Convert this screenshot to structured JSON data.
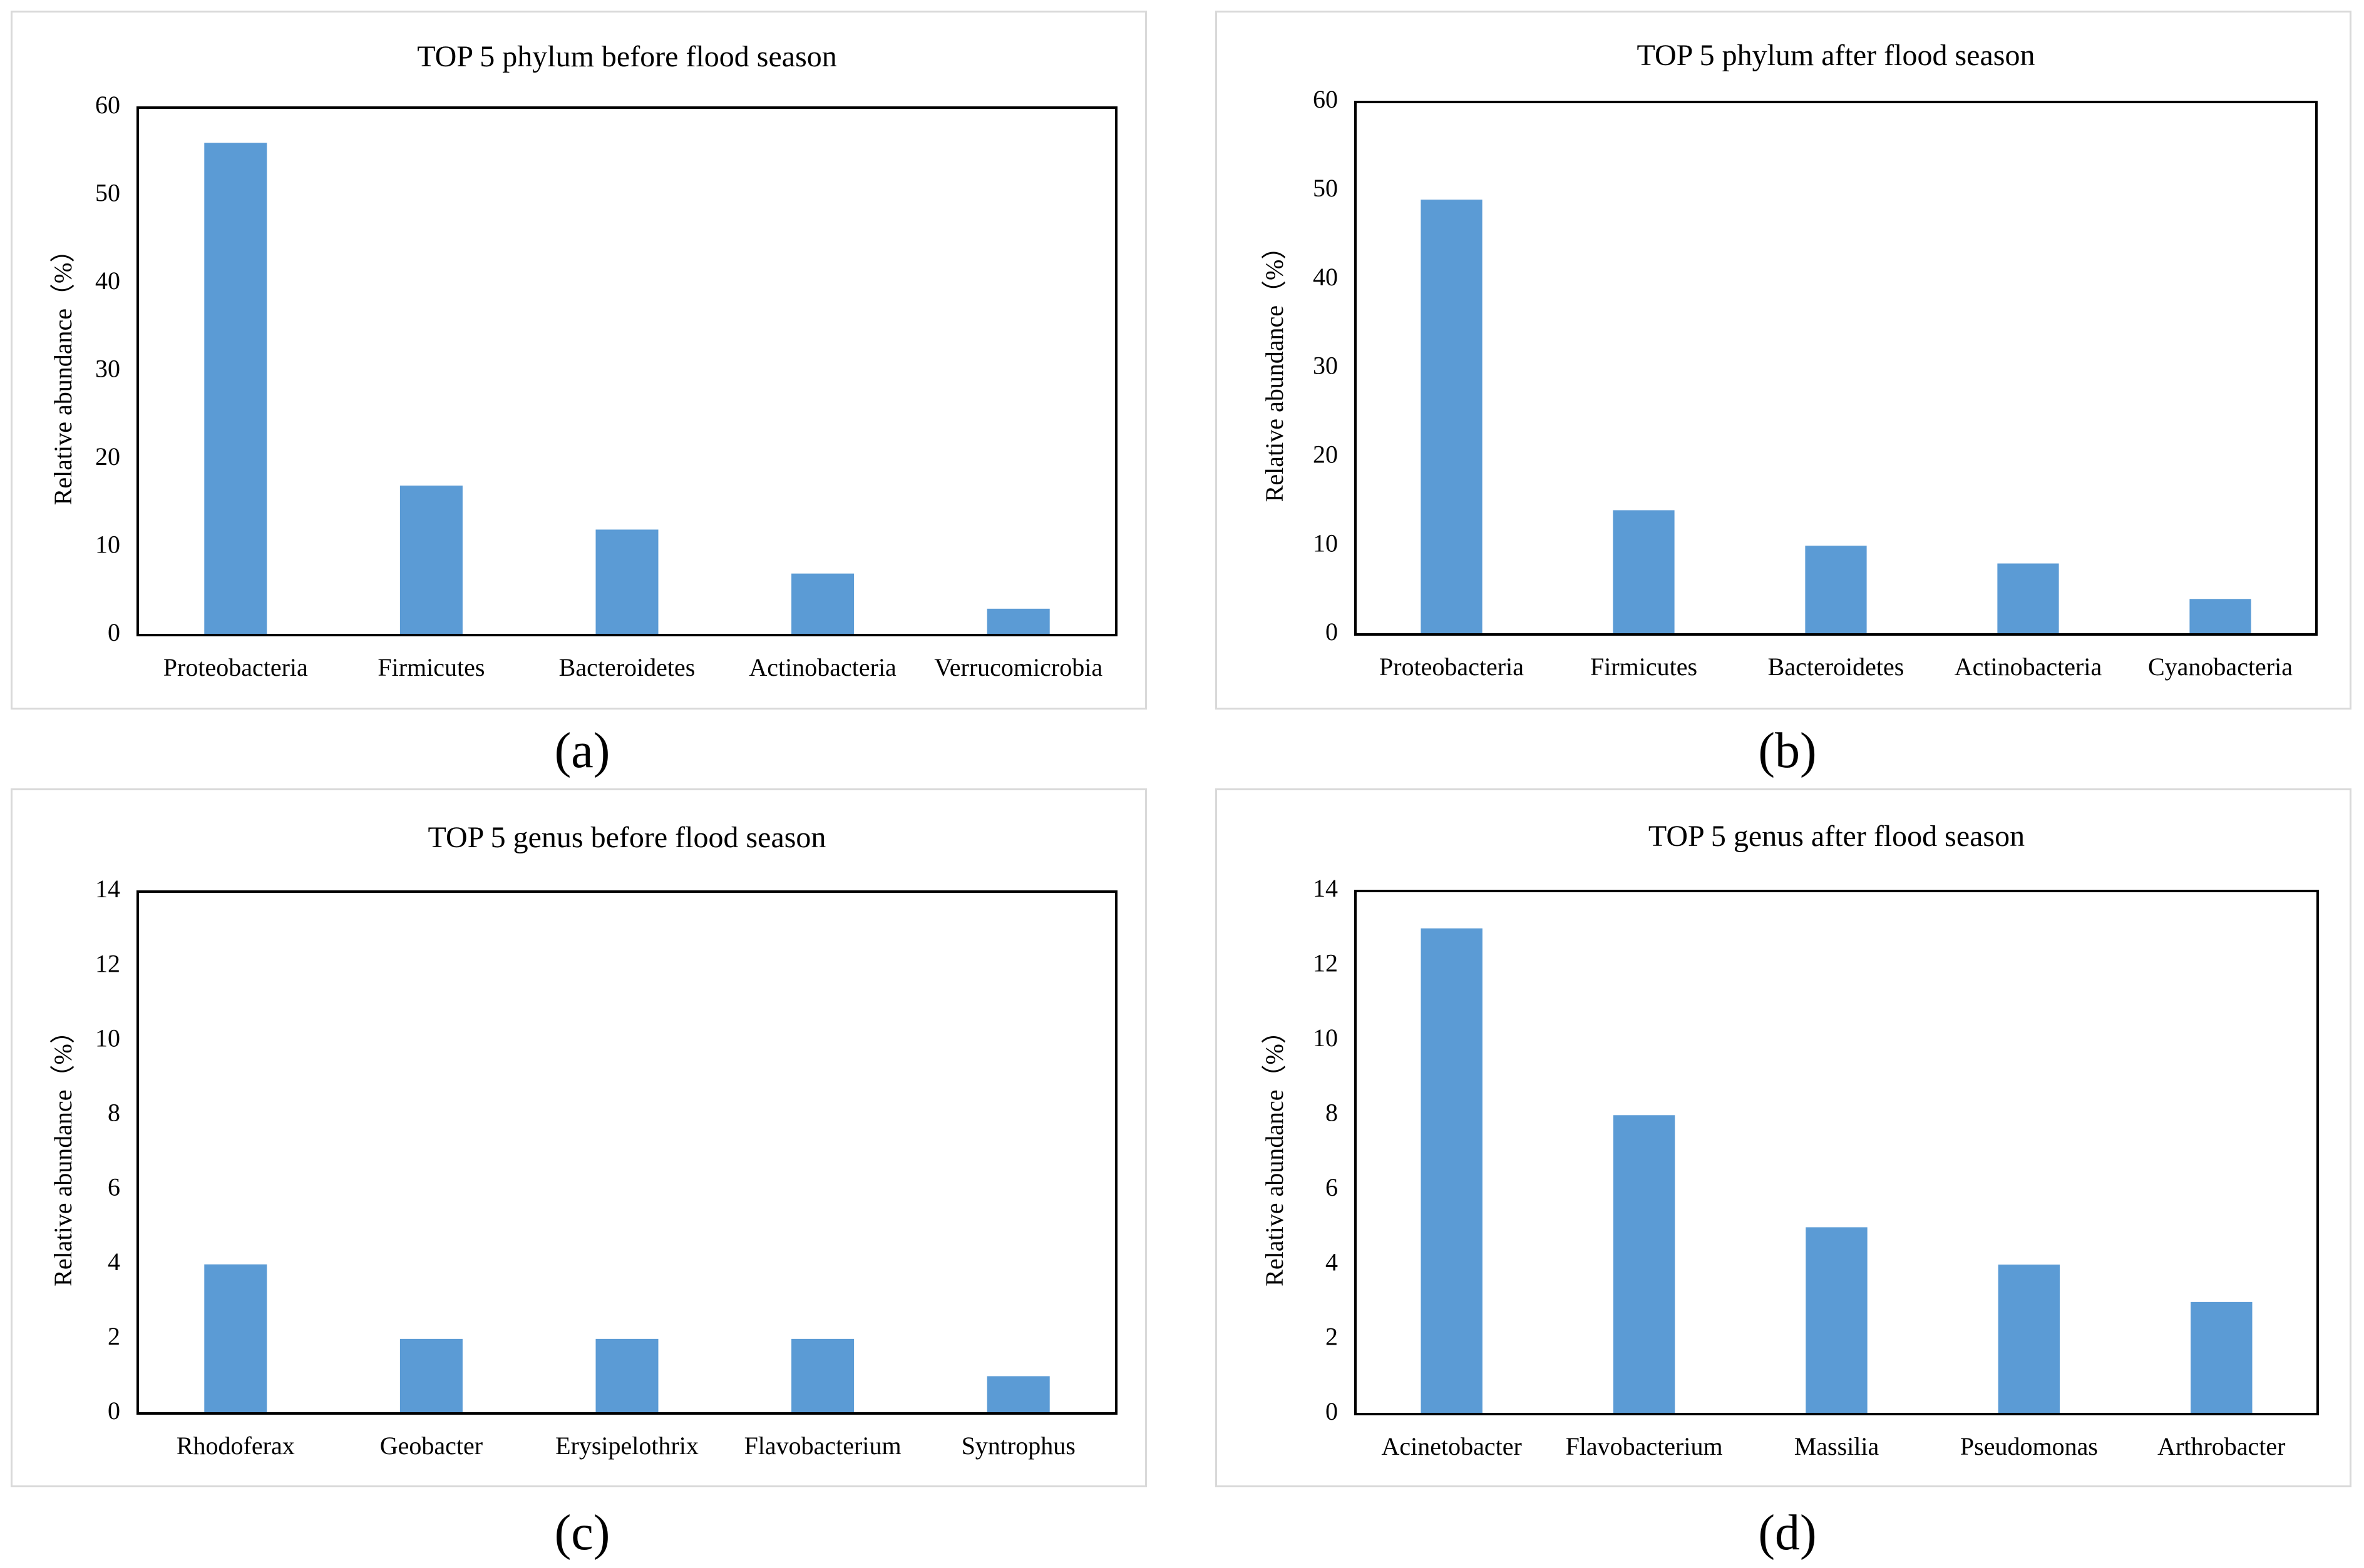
{
  "colors": {
    "bar": "#5b9bd5",
    "axis": "#000000",
    "frame": "#d9d9d9"
  },
  "chart_data": [
    {
      "type": "bar",
      "panel_label": "(a)",
      "title": "TOP 5 phylum before flood season",
      "xlabel": "",
      "ylabel": "Relative abundance（%）",
      "ylim": [
        0,
        60
      ],
      "yticks": [
        0,
        10,
        20,
        30,
        40,
        50,
        60
      ],
      "categories": [
        "Proteobacteria",
        "Firmicutes",
        "Bacteroidetes",
        "Actinobacteria",
        "Verrucomicrobia"
      ],
      "values": [
        56,
        17,
        12,
        7,
        3
      ],
      "grid": false
    },
    {
      "type": "bar",
      "panel_label": "(b)",
      "title": "TOP 5 phylum after flood season",
      "xlabel": "",
      "ylabel": "Relative abundance（%）",
      "ylim": [
        0,
        60
      ],
      "yticks": [
        0,
        10,
        20,
        30,
        40,
        50,
        60
      ],
      "categories": [
        "Proteobacteria",
        "Firmicutes",
        "Bacteroidetes",
        "Actinobacteria",
        "Cyanobacteria"
      ],
      "values": [
        49,
        14,
        10,
        8,
        4
      ],
      "grid": false
    },
    {
      "type": "bar",
      "panel_label": "(c)",
      "title": "TOP 5 genus before flood season",
      "xlabel": "",
      "ylabel": "Relative abundance（%）",
      "ylim": [
        0,
        14
      ],
      "yticks": [
        0,
        2,
        4,
        6,
        8,
        10,
        12,
        14
      ],
      "categories": [
        "Rhodoferax",
        "Geobacter",
        "Erysipelothrix",
        "Flavobacterium",
        "Syntrophus"
      ],
      "values": [
        4,
        2,
        2,
        2,
        1
      ],
      "grid": false
    },
    {
      "type": "bar",
      "panel_label": "(d)",
      "title": "TOP 5 genus after flood season",
      "xlabel": "",
      "ylabel": "Relative abundance（%）",
      "ylim": [
        0,
        14
      ],
      "yticks": [
        0,
        2,
        4,
        6,
        8,
        10,
        12,
        14
      ],
      "categories": [
        "Acinetobacter",
        "Flavobacterium",
        "Massilia",
        "Pseudomonas",
        "Arthrobacter"
      ],
      "values": [
        13,
        8,
        5,
        4,
        3
      ],
      "grid": false
    }
  ]
}
